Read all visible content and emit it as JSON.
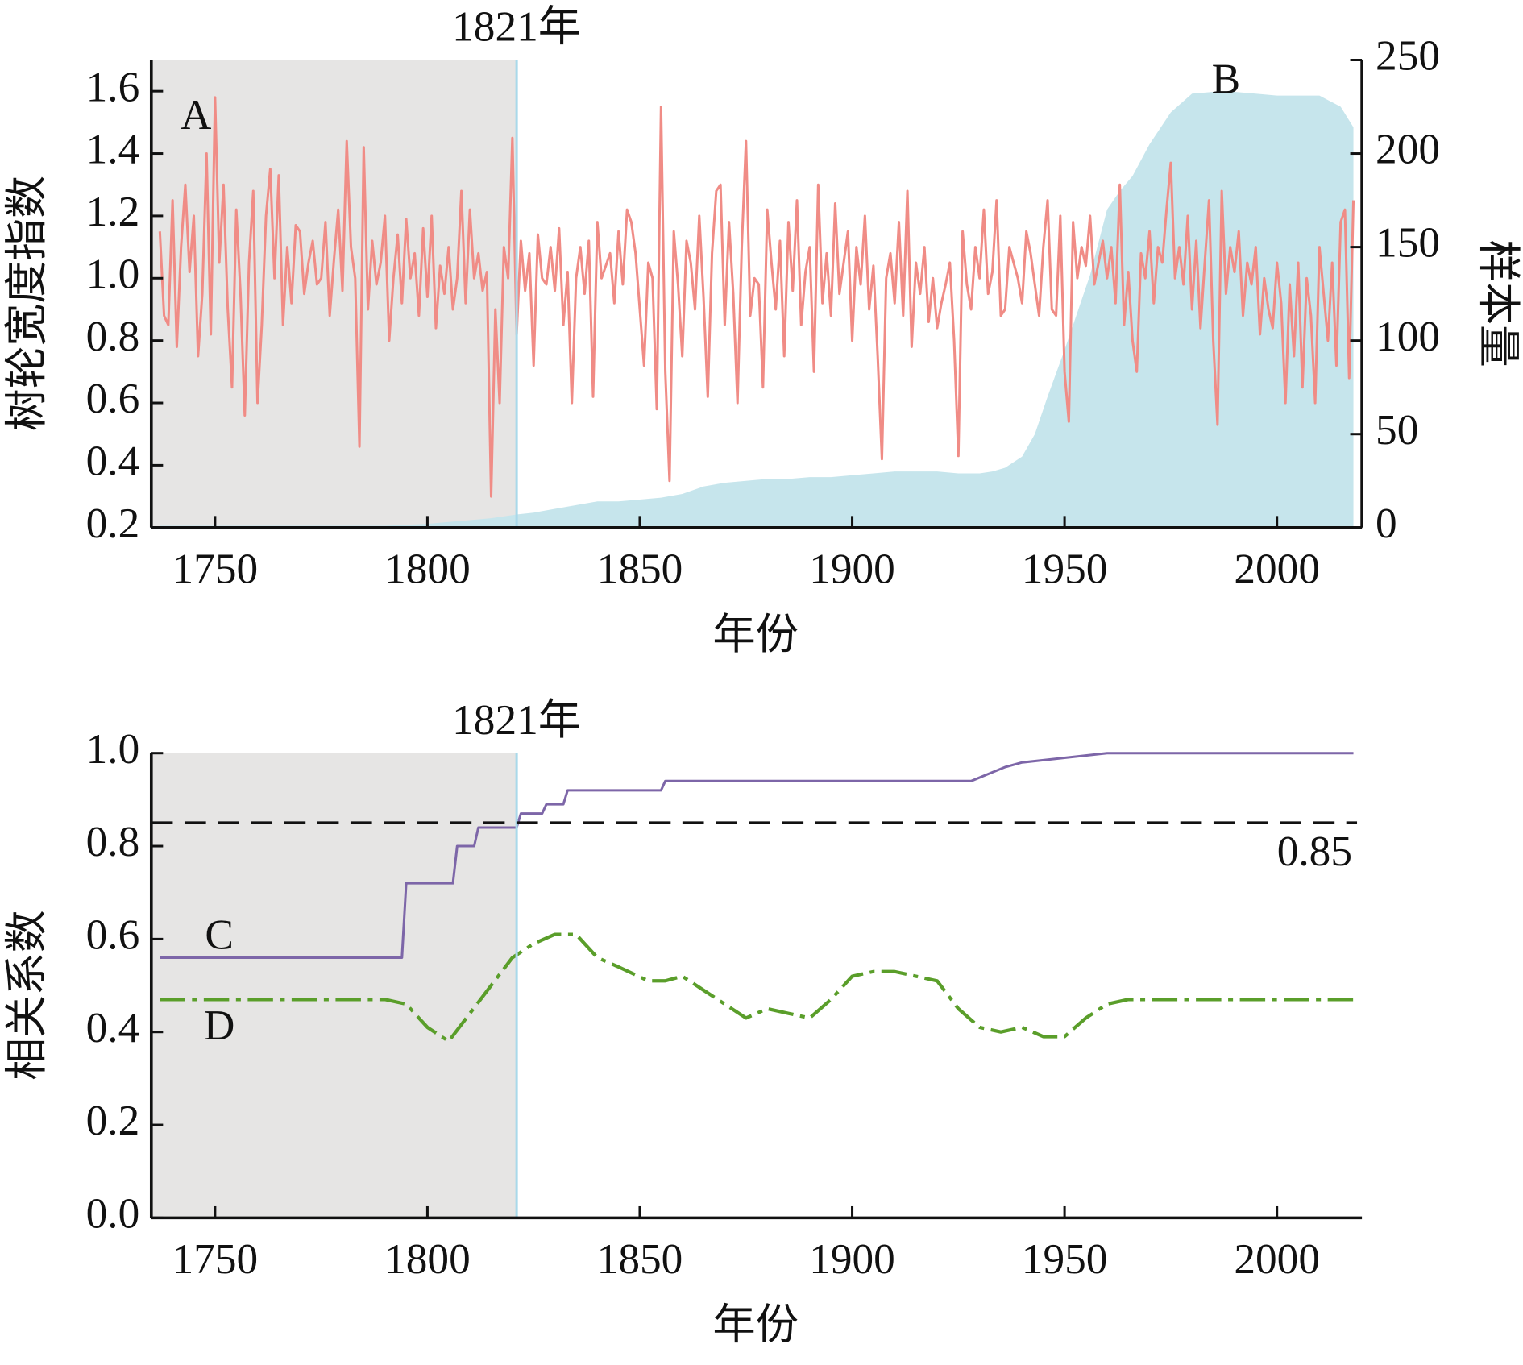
{
  "chart_data": [
    {
      "type": "line",
      "ylabel": "树轮宽度指数",
      "y2label": "样本量",
      "xlabel": "年份",
      "xlim": [
        1735,
        2020
      ],
      "xticks": [
        1750,
        1800,
        1850,
        1900,
        1950,
        2000
      ],
      "ylim": [
        0.2,
        1.7
      ],
      "yticks": [
        0.2,
        0.4,
        0.6,
        0.8,
        {
          "value": 1,
          "label": "1.0"
        },
        1.2,
        1.4,
        1.6
      ],
      "y2lim": [
        0,
        250
      ],
      "y2ticks": [
        0,
        50,
        100,
        150,
        200,
        250
      ],
      "annotations": [
        {
          "text": "1821年",
          "x": 1821
        },
        {
          "text": "A",
          "x": 1745.5,
          "y": 1.51
        },
        {
          "text": "B",
          "x": 1988,
          "y": 1.625
        }
      ],
      "series": [
        {
          "type": "area",
          "axis": "y2",
          "color": "#c6e5ec",
          "x": [
            1737,
            1750,
            1760,
            1770,
            1780,
            1790,
            1800,
            1805,
            1810,
            1815,
            1821,
            1825,
            1830,
            1835,
            1840,
            1845,
            1850,
            1855,
            1860,
            1865,
            1870,
            1875,
            1880,
            1885,
            1890,
            1895,
            1900,
            1905,
            1910,
            1915,
            1920,
            1925,
            1930,
            1933,
            1936,
            1940,
            1943,
            1946,
            1950,
            1953,
            1956,
            1960,
            1963,
            1966,
            1970,
            1975,
            1980,
            1985,
            1990,
            1995,
            2000,
            2005,
            2010,
            2015,
            2018
          ],
          "values": [
            1,
            1,
            1,
            1,
            1,
            1,
            2,
            3,
            4,
            5,
            7,
            8,
            10,
            12,
            14,
            14,
            15,
            16,
            18,
            22,
            24,
            25,
            26,
            26,
            27,
            27,
            28,
            29,
            30,
            30,
            30,
            29,
            29,
            30,
            32,
            38,
            50,
            70,
            95,
            115,
            135,
            170,
            180,
            188,
            205,
            222,
            232,
            233,
            233,
            232,
            231,
            231,
            231,
            225,
            214
          ]
        },
        {
          "type": "line",
          "color": "#f08c86",
          "x": [
            1737,
            1738,
            1739,
            1740,
            1741,
            1742,
            1743,
            1744,
            1745,
            1746,
            1747,
            1748,
            1749,
            1750,
            1751,
            1752,
            1753,
            1754,
            1755,
            1756,
            1757,
            1758,
            1759,
            1760,
            1761,
            1762,
            1763,
            1764,
            1765,
            1766,
            1767,
            1768,
            1769,
            1770,
            1771,
            1772,
            1773,
            1774,
            1775,
            1776,
            1777,
            1778,
            1779,
            1780,
            1781,
            1782,
            1783,
            1784,
            1785,
            1786,
            1787,
            1788,
            1789,
            1790,
            1791,
            1792,
            1793,
            1794,
            1795,
            1796,
            1797,
            1798,
            1799,
            1800,
            1801,
            1802,
            1803,
            1804,
            1805,
            1806,
            1807,
            1808,
            1809,
            1810,
            1811,
            1812,
            1813,
            1814,
            1815,
            1816,
            1817,
            1818,
            1819,
            1820,
            1821,
            1822,
            1823,
            1824,
            1825,
            1826,
            1827,
            1828,
            1829,
            1830,
            1831,
            1832,
            1833,
            1834,
            1835,
            1836,
            1837,
            1838,
            1839,
            1840,
            1841,
            1842,
            1843,
            1844,
            1845,
            1846,
            1847,
            1848,
            1849,
            1850,
            1851,
            1852,
            1853,
            1854,
            1855,
            1856,
            1857,
            1858,
            1859,
            1860,
            1861,
            1862,
            1863,
            1864,
            1865,
            1866,
            1867,
            1868,
            1869,
            1870,
            1871,
            1872,
            1873,
            1874,
            1875,
            1876,
            1877,
            1878,
            1879,
            1880,
            1881,
            1882,
            1883,
            1884,
            1885,
            1886,
            1887,
            1888,
            1889,
            1890,
            1891,
            1892,
            1893,
            1894,
            1895,
            1896,
            1897,
            1898,
            1899,
            1900,
            1901,
            1902,
            1903,
            1904,
            1905,
            1906,
            1907,
            1908,
            1909,
            1910,
            1911,
            1912,
            1913,
            1914,
            1915,
            1916,
            1917,
            1918,
            1919,
            1920,
            1921,
            1922,
            1923,
            1924,
            1925,
            1926,
            1927,
            1928,
            1929,
            1930,
            1931,
            1932,
            1933,
            1934,
            1935,
            1936,
            1937,
            1938,
            1939,
            1940,
            1941,
            1942,
            1943,
            1944,
            1945,
            1946,
            1947,
            1948,
            1949,
            1950,
            1951,
            1952,
            1953,
            1954,
            1955,
            1956,
            1957,
            1958,
            1959,
            1960,
            1961,
            1962,
            1963,
            1964,
            1965,
            1966,
            1967,
            1968,
            1969,
            1970,
            1971,
            1972,
            1973,
            1974,
            1975,
            1976,
            1977,
            1978,
            1979,
            1980,
            1981,
            1982,
            1983,
            1984,
            1985,
            1986,
            1987,
            1988,
            1989,
            1990,
            1991,
            1992,
            1993,
            1994,
            1995,
            1996,
            1997,
            1998,
            1999,
            2000,
            2001,
            2002,
            2003,
            2004,
            2005,
            2006,
            2007,
            2008,
            2009,
            2010,
            2011,
            2012,
            2013,
            2014,
            2015,
            2016,
            2017,
            2018
          ],
          "values": [
            1.15,
            0.88,
            0.85,
            1.25,
            0.78,
            1.1,
            1.3,
            1.02,
            1.2,
            0.75,
            0.95,
            1.4,
            0.82,
            1.58,
            1.05,
            1.3,
            0.9,
            0.65,
            1.22,
            0.95,
            0.56,
            1.05,
            1.28,
            0.6,
            0.85,
            1.2,
            1.35,
            1.0,
            1.33,
            0.85,
            1.1,
            0.92,
            1.17,
            1.15,
            0.95,
            1.05,
            1.12,
            0.98,
            1.0,
            1.18,
            0.88,
            1.06,
            1.22,
            0.96,
            1.44,
            1.1,
            1.0,
            0.46,
            1.42,
            0.9,
            1.12,
            0.98,
            1.05,
            1.2,
            0.8,
            1.0,
            1.14,
            0.92,
            1.19,
            1.0,
            1.08,
            0.88,
            1.16,
            0.94,
            1.2,
            0.84,
            1.04,
            0.95,
            1.1,
            0.9,
            1.0,
            1.28,
            0.92,
            1.22,
            1.0,
            1.08,
            0.96,
            1.02,
            0.3,
            0.9,
            0.6,
            1.1,
            1.0,
            1.45,
            0.82,
            1.12,
            0.96,
            1.08,
            0.72,
            1.14,
            1.0,
            0.98,
            1.1,
            0.96,
            1.16,
            0.85,
            1.02,
            0.6,
            1.0,
            1.1,
            0.95,
            1.12,
            0.62,
            1.18,
            1.0,
            1.04,
            1.08,
            0.92,
            1.15,
            0.98,
            1.22,
            1.18,
            1.08,
            0.9,
            0.72,
            1.05,
            1.0,
            0.58,
            1.55,
            0.7,
            0.35,
            1.15,
            0.98,
            0.75,
            1.12,
            1.05,
            0.9,
            1.2,
            0.94,
            0.62,
            1.08,
            1.28,
            1.3,
            0.85,
            1.18,
            0.95,
            0.6,
            1.1,
            1.44,
            0.88,
            1.0,
            0.98,
            0.65,
            1.22,
            1.05,
            0.9,
            1.12,
            0.75,
            1.18,
            0.96,
            1.25,
            0.85,
            1.02,
            1.1,
            0.7,
            1.3,
            0.92,
            1.08,
            0.88,
            1.24,
            0.95,
            1.05,
            1.15,
            0.8,
            1.1,
            0.98,
            1.2,
            0.9,
            1.04,
            0.75,
            0.42,
            1.0,
            1.08,
            0.92,
            1.18,
            0.88,
            1.28,
            0.78,
            1.05,
            0.95,
            1.1,
            0.86,
            1.0,
            0.84,
            0.92,
            0.98,
            1.05,
            0.8,
            0.43,
            1.15,
            0.98,
            0.9,
            1.1,
            1.0,
            1.22,
            0.95,
            1.02,
            1.25,
            0.88,
            0.9,
            1.1,
            1.05,
            1.0,
            0.92,
            1.15,
            1.08,
            0.98,
            0.88,
            1.1,
            1.25,
            0.9,
            0.88,
            1.2,
            0.7,
            0.54,
            1.18,
            1.0,
            1.1,
            1.04,
            1.2,
            0.98,
            1.05,
            1.12,
            1.0,
            1.1,
            0.92,
            1.3,
            0.85,
            1.02,
            0.8,
            0.7,
            1.08,
            1.0,
            1.15,
            0.92,
            1.1,
            1.05,
            1.22,
            1.37,
            1.0,
            1.1,
            0.98,
            1.2,
            0.9,
            1.12,
            0.84,
            1.05,
            1.25,
            0.8,
            0.53,
            1.28,
            0.95,
            1.1,
            1.02,
            1.15,
            0.88,
            1.05,
            0.98,
            1.1,
            0.82,
            1.0,
            0.9,
            0.84,
            1.05,
            0.92,
            0.6,
            0.98,
            0.75,
            1.05,
            0.65,
            1.0,
            0.88,
            0.6,
            1.1,
            0.95,
            0.8,
            1.05,
            0.72,
            1.18,
            1.22,
            0.68,
            1.25
          ]
        }
      ]
    },
    {
      "type": "line",
      "ylabel": "相关系数",
      "xlabel": "年份",
      "xlim": [
        1735,
        2020
      ],
      "xticks": [
        1750,
        1800,
        1850,
        1900,
        1950,
        2000
      ],
      "ylim": [
        0,
        1
      ],
      "yticks": [
        {
          "value": 0,
          "label": "0.0"
        },
        0.2,
        0.4,
        0.6,
        0.8,
        {
          "value": 1,
          "label": "1.0"
        }
      ],
      "hline": {
        "value": 0.85,
        "label": "0.85"
      },
      "annotations": [
        {
          "text": "1821年",
          "x": 1821
        },
        {
          "text": "C",
          "x": 1751,
          "y": 0.6
        },
        {
          "text": "D",
          "x": 1751,
          "y": 0.405
        }
      ],
      "series": [
        {
          "type": "line",
          "color": "#7d66a8",
          "step": true,
          "x": [
            1737,
            1794,
            1795,
            1806,
            1807,
            1811,
            1812,
            1821,
            1822,
            1827,
            1828,
            1832,
            1833,
            1855,
            1856,
            1928,
            1932,
            1936,
            1940,
            1945,
            1950,
            1955,
            1960,
            2018
          ],
          "values": [
            0.56,
            0.56,
            0.72,
            0.72,
            0.8,
            0.8,
            0.84,
            0.84,
            0.87,
            0.87,
            0.89,
            0.89,
            0.92,
            0.92,
            0.94,
            0.94,
            0.955,
            0.97,
            0.98,
            0.985,
            0.99,
            0.995,
            1,
            1
          ]
        },
        {
          "type": "line",
          "color": "#5a9e2a",
          "dash": "dashdot",
          "x": [
            1737,
            1790,
            1795,
            1800,
            1805,
            1810,
            1815,
            1820,
            1825,
            1830,
            1835,
            1840,
            1845,
            1852,
            1856,
            1860,
            1865,
            1870,
            1875,
            1880,
            1885,
            1890,
            1895,
            1900,
            1905,
            1910,
            1915,
            1920,
            1925,
            1930,
            1935,
            1940,
            1945,
            1950,
            1955,
            1960,
            1965,
            1970,
            2018
          ],
          "values": [
            0.47,
            0.47,
            0.46,
            0.41,
            0.38,
            0.44,
            0.5,
            0.56,
            0.59,
            0.61,
            0.61,
            0.56,
            0.54,
            0.51,
            0.51,
            0.52,
            0.49,
            0.46,
            0.43,
            0.45,
            0.44,
            0.43,
            0.47,
            0.52,
            0.53,
            0.53,
            0.52,
            0.51,
            0.45,
            0.41,
            0.4,
            0.41,
            0.39,
            0.39,
            0.43,
            0.46,
            0.47,
            0.47,
            0.47
          ]
        }
      ]
    }
  ]
}
